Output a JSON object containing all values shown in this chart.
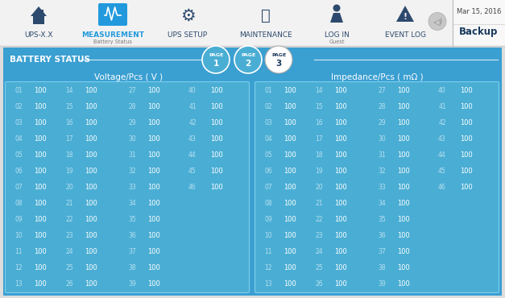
{
  "bg_color": "#3a9fd1",
  "header_bg": "#f2f2f2",
  "title": "BATTERY STATUS",
  "date_text": "Mar 15, 2016",
  "backup_text": "Backup",
  "nav_items": [
    "UPS-X.X",
    "MEASUREMENT",
    "UPS SETUP",
    "MAINTENANCE",
    "LOG IN",
    "EVENT LOG"
  ],
  "nav_x": [
    48,
    140,
    233,
    330,
    418,
    503
  ],
  "measurement_sub": "Battery Status",
  "login_sub": "Guest",
  "page_active": 2,
  "voltage_title": "Voltage/Pcs ( V )",
  "impedance_title": "Impedance/Pcs ( mΩ )",
  "table_facecolor": "#4aaed4",
  "table_edgecolor": "#7dcfed",
  "idx_color": "#b8dff0",
  "val_color": "#ffffff",
  "voltage_data": [
    [
      "01",
      "100",
      "14",
      "100",
      "27",
      "100",
      "40",
      "100"
    ],
    [
      "02",
      "100",
      "15",
      "100",
      "28",
      "100",
      "41",
      "100"
    ],
    [
      "03",
      "100",
      "16",
      "100",
      "29",
      "100",
      "42",
      "100"
    ],
    [
      "04",
      "100",
      "17",
      "100",
      "30",
      "100",
      "43",
      "100"
    ],
    [
      "05",
      "100",
      "18",
      "100",
      "31",
      "100",
      "44",
      "100"
    ],
    [
      "06",
      "100",
      "19",
      "100",
      "32",
      "100",
      "45",
      "100"
    ],
    [
      "07",
      "100",
      "20",
      "100",
      "33",
      "100",
      "46",
      "100"
    ],
    [
      "08",
      "100",
      "21",
      "100",
      "34",
      "100",
      "",
      ""
    ],
    [
      "09",
      "100",
      "22",
      "100",
      "35",
      "100",
      "",
      ""
    ],
    [
      "10",
      "100",
      "23",
      "100",
      "36",
      "100",
      "",
      ""
    ],
    [
      "11",
      "100",
      "24",
      "100",
      "37",
      "100",
      "",
      ""
    ],
    [
      "12",
      "100",
      "25",
      "100",
      "38",
      "100",
      "",
      ""
    ],
    [
      "13",
      "100",
      "26",
      "100",
      "39",
      "100",
      "",
      ""
    ]
  ],
  "impedance_data": [
    [
      "01",
      "100",
      "14",
      "100",
      "27",
      "100",
      "40",
      "100"
    ],
    [
      "02",
      "100",
      "15",
      "100",
      "28",
      "100",
      "41",
      "100"
    ],
    [
      "03",
      "100",
      "16",
      "100",
      "29",
      "100",
      "42",
      "100"
    ],
    [
      "04",
      "100",
      "17",
      "100",
      "30",
      "100",
      "43",
      "100"
    ],
    [
      "05",
      "100",
      "18",
      "100",
      "31",
      "100",
      "44",
      "100"
    ],
    [
      "06",
      "100",
      "19",
      "100",
      "32",
      "100",
      "45",
      "100"
    ],
    [
      "07",
      "100",
      "20",
      "100",
      "33",
      "100",
      "46",
      "100"
    ],
    [
      "08",
      "100",
      "21",
      "100",
      "34",
      "100",
      "",
      ""
    ],
    [
      "09",
      "100",
      "22",
      "100",
      "35",
      "100",
      "",
      ""
    ],
    [
      "10",
      "100",
      "23",
      "100",
      "36",
      "100",
      "",
      ""
    ],
    [
      "11",
      "100",
      "24",
      "100",
      "37",
      "100",
      "",
      ""
    ],
    [
      "12",
      "100",
      "25",
      "100",
      "38",
      "100",
      "",
      ""
    ],
    [
      "13",
      "100",
      "26",
      "100",
      "39",
      "100",
      "",
      ""
    ]
  ]
}
